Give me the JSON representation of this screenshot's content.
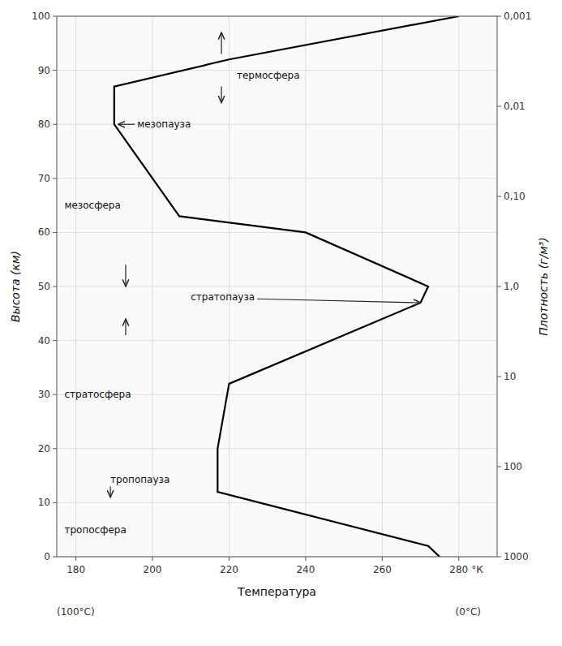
{
  "chart_data": {
    "type": "line",
    "x": [
      275,
      272,
      217,
      217,
      220,
      270,
      272,
      240,
      207,
      190,
      190,
      220,
      280
    ],
    "values": [
      0,
      2,
      12,
      20,
      32,
      47,
      50,
      60,
      63,
      80,
      87,
      92,
      100
    ],
    "color": "#000000",
    "xlabel": "Температура",
    "xlabel_unit": "°К",
    "xlabel_notes": [
      "(100°C)",
      "(0°C)"
    ],
    "ylabel": "Высота (км)",
    "y2label": "Плотность (г/м³)",
    "xlim": [
      175,
      290
    ],
    "ylim": [
      0,
      100
    ],
    "xticks": [
      180,
      200,
      220,
      240,
      260,
      280
    ],
    "yticks": [
      0,
      10,
      20,
      30,
      40,
      50,
      60,
      70,
      80,
      90,
      100
    ],
    "y2lim": [
      1000,
      0.001
    ],
    "y2ticks": [
      1000,
      100,
      10,
      {
        "value": 1.0,
        "label": "1,0"
      },
      {
        "value": 0.1,
        "label": "0,10"
      },
      {
        "value": 0.01,
        "label": "0,01"
      },
      {
        "value": 0.001,
        "label": "0,001"
      }
    ],
    "log": "y2",
    "grid": true,
    "annotations": [
      {
        "text": "тропосфера",
        "x": 177,
        "y": 5
      },
      {
        "text": "тропопауза",
        "x": 189,
        "y": 13,
        "arrows": [
          [
            189,
            13,
            189,
            11
          ]
        ]
      },
      {
        "text": "стратосфера",
        "x": 177,
        "y": 30
      },
      {
        "text": "стратопауза",
        "x": 210,
        "y": 48,
        "arrows": [
          [
            210,
            48,
            270,
            47
          ],
          [
            193,
            54,
            193,
            50
          ],
          [
            193,
            41,
            193,
            44
          ]
        ]
      },
      {
        "text": "мезосфера",
        "x": 177,
        "y": 65
      },
      {
        "text": "мезопауза",
        "x": 196,
        "y": 80,
        "arrows": [
          [
            196,
            80,
            191,
            80
          ]
        ]
      },
      {
        "text": "термосфера",
        "x": 222,
        "y": 89,
        "arrows": [
          [
            218,
            93,
            218,
            97
          ],
          [
            218,
            87,
            218,
            84
          ]
        ]
      }
    ]
  }
}
